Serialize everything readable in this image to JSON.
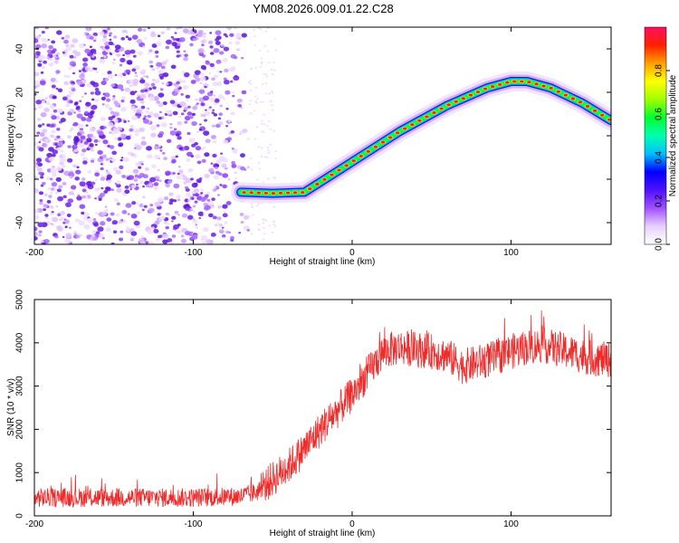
{
  "title": "YM08.2026.009.01.22.C28",
  "colors": {
    "snr_line": "#ee2b2b",
    "signal_mid": "#00ff20",
    "signal_core": "#ff0000",
    "noise": "#7a2cf0"
  },
  "chart_data": [
    {
      "type": "heatmap",
      "title": "YM08.2026.009.01.22.C28",
      "xlabel": "Height of straight line (km)",
      "ylabel": "Frequency (Hz)",
      "xlim": [
        -200,
        163
      ],
      "ylim": [
        -50,
        50
      ],
      "xticks": [
        -200,
        -100,
        0,
        100
      ],
      "yticks": [
        -40,
        -20,
        0,
        20,
        40
      ],
      "colorbar": {
        "label": "Normalized spectral amplitude",
        "range": [
          0,
          1
        ],
        "ticks": [
          "0.0",
          "0.2",
          "0.4",
          "0.6",
          "0.8"
        ],
        "colormap": [
          "#ffffff",
          "#e8d0ff",
          "#a050ff",
          "#5010ff",
          "#0000ff",
          "#00c0ff",
          "#00ffb0",
          "#00ff30",
          "#a0ff00",
          "#ffff00",
          "#ffa000",
          "#ff2000",
          "#ff1060"
        ]
      },
      "noise_region": {
        "x_range": [
          -200,
          -65
        ],
        "y_range": [
          -50,
          50
        ]
      },
      "ridge": {
        "description": "dominant frequency track",
        "x": [
          -70,
          -50,
          -30,
          0,
          30,
          60,
          85,
          100,
          110,
          125,
          145,
          163
        ],
        "y": [
          -26,
          -26.5,
          -26,
          -12,
          2,
          14,
          22,
          25,
          25,
          22,
          15,
          7
        ]
      }
    },
    {
      "type": "line",
      "xlabel": "Height of straight line (km)",
      "ylabel": "SNR (10 * v/v)",
      "xlim": [
        -200,
        163
      ],
      "ylim": [
        0,
        5000
      ],
      "xticks": [
        -200,
        -100,
        0,
        100
      ],
      "yticks": [
        0,
        1000,
        2000,
        3000,
        4000,
        5000
      ],
      "series": [
        {
          "name": "SNR",
          "trend_x": [
            -200,
            -150,
            -100,
            -70,
            -60,
            -50,
            -40,
            -30,
            -20,
            -10,
            0,
            10,
            20,
            30,
            40,
            50,
            60,
            70,
            80,
            90,
            100,
            110,
            120,
            130,
            140,
            150,
            163
          ],
          "trend_y": [
            420,
            420,
            420,
            450,
            550,
            850,
            1150,
            1550,
            2000,
            2400,
            2800,
            3300,
            3800,
            3900,
            3850,
            3800,
            3700,
            3450,
            3550,
            3650,
            3800,
            3900,
            3950,
            3850,
            3750,
            3650,
            3600
          ],
          "noise_amplitude": 260
        }
      ]
    }
  ]
}
